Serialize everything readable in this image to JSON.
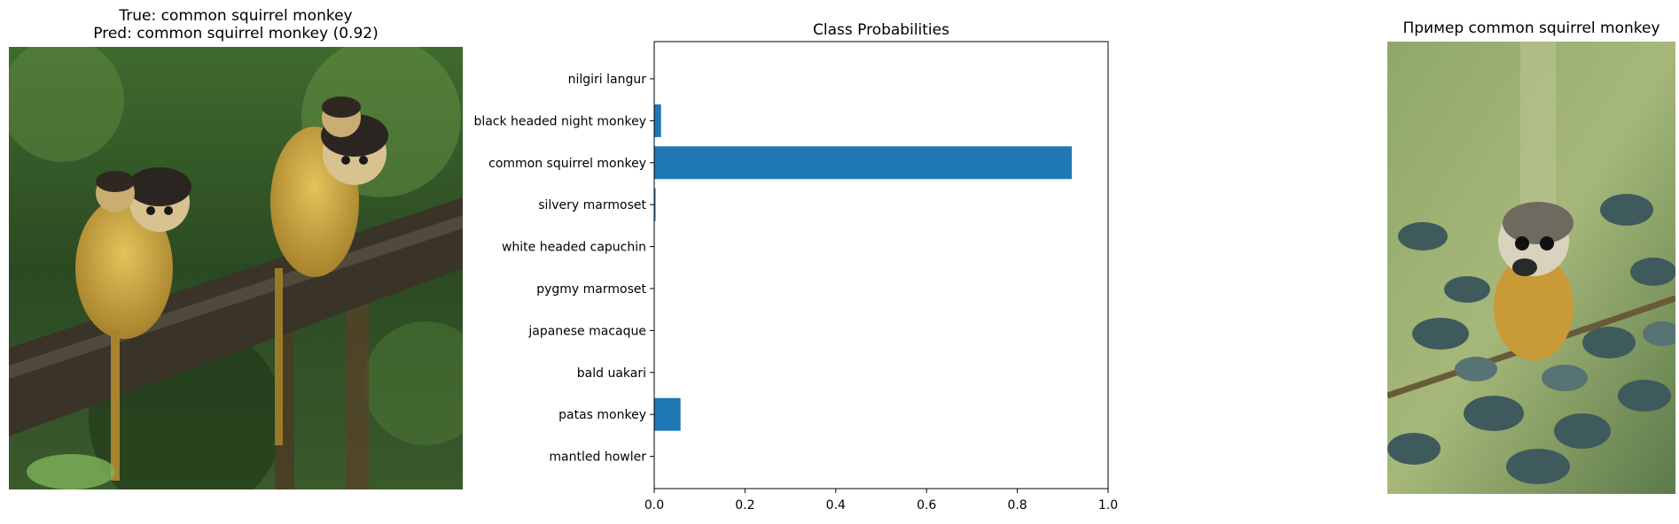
{
  "panels": {
    "left": {
      "title_line1": "True: common squirrel monkey",
      "title_line2": "Pred: common squirrel monkey (0.92)"
    },
    "right": {
      "title": "Пример common squirrel monkey"
    }
  },
  "chart_data": {
    "type": "bar",
    "orientation": "horizontal",
    "title": "Class Probabilities",
    "xlabel": "",
    "ylabel": "",
    "xlim": [
      0,
      1
    ],
    "xticks": [
      0.0,
      0.2,
      0.4,
      0.6,
      0.8,
      1.0
    ],
    "xtick_labels": [
      "0.0",
      "0.2",
      "0.4",
      "0.6",
      "0.8",
      "1.0"
    ],
    "categories": [
      "nilgiri langur",
      "black headed night monkey",
      "common squirrel monkey",
      "silvery marmoset",
      "white headed capuchin",
      "pygmy marmoset",
      "japanese macaque",
      "bald uakari",
      "patas monkey",
      "mantled howler"
    ],
    "values": [
      0.0005,
      0.015,
      0.92,
      0.003,
      0.0005,
      0.0003,
      0.0003,
      0.0003,
      0.058,
      0.0005
    ],
    "bar_color": "#1f77b4",
    "grid": false
  },
  "colors": {
    "bar": "#1f77b4",
    "axes": "#000000"
  }
}
